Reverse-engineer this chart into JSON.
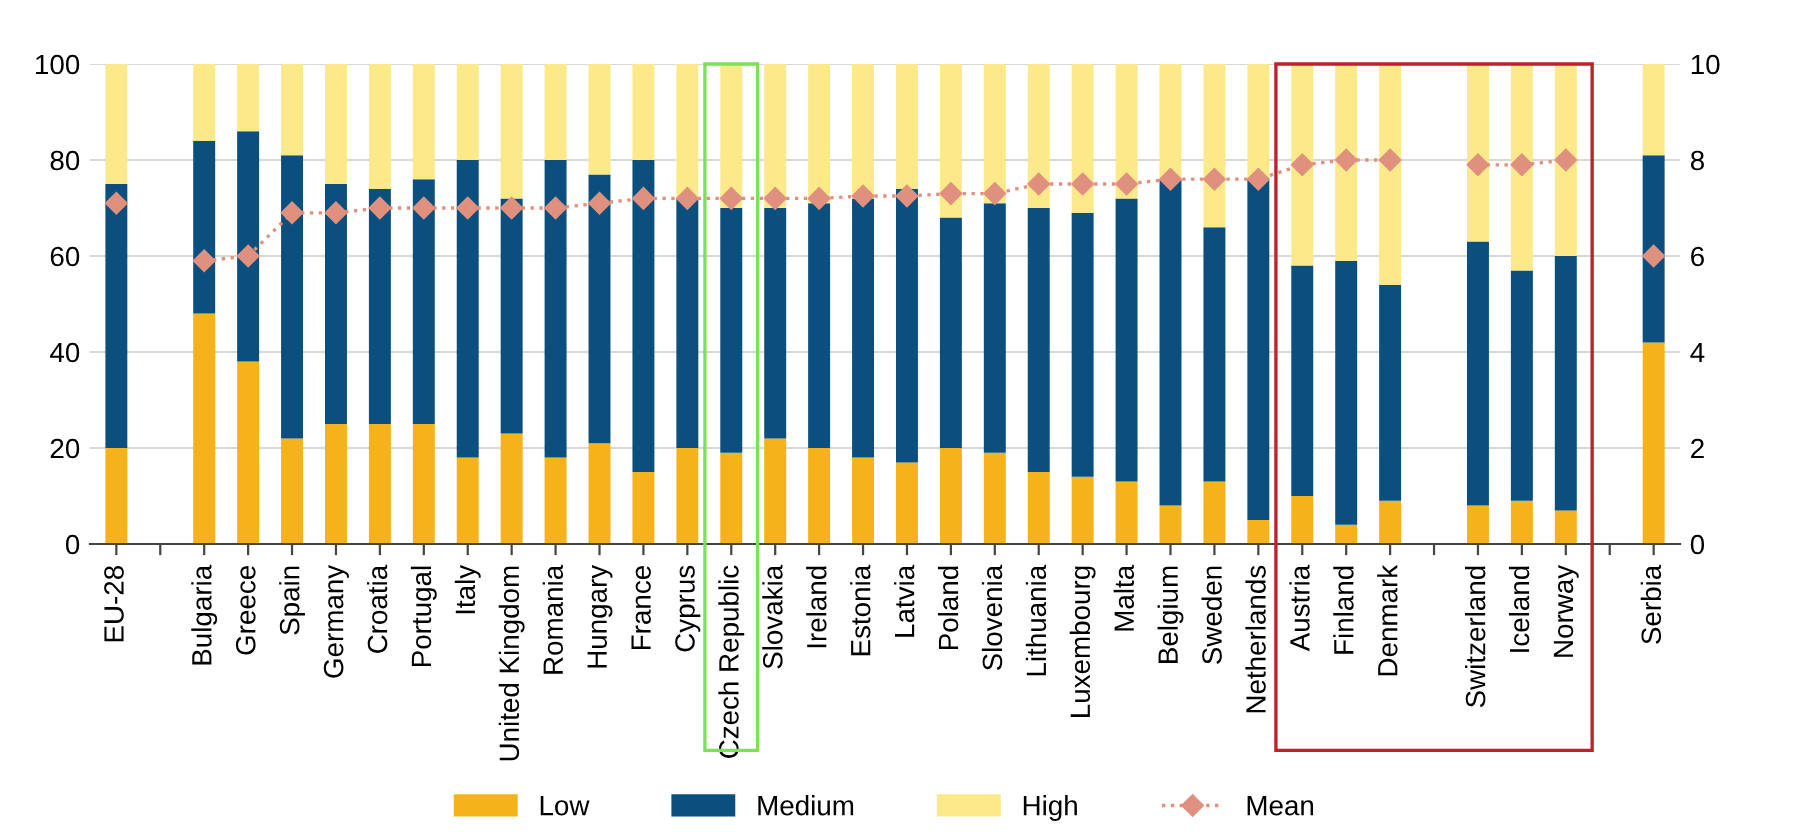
{
  "chart_data": {
    "type": "bar",
    "stacked": true,
    "categories": [
      "EU-28",
      null,
      "Bulgaria",
      "Greece",
      "Spain",
      "Germany",
      "Croatia",
      "Portugal",
      "Italy",
      "United Kingdom",
      "Romania",
      "Hungary",
      "France",
      "Cyprus",
      "Czech Republic",
      "Slovakia",
      "Ireland",
      "Estonia",
      "Latvia",
      "Poland",
      "Slovenia",
      "Lithuania",
      "Luxembourg",
      "Malta",
      "Belgium",
      "Sweden",
      "Netherlands",
      "Austria",
      "Finland",
      "Denmark",
      null,
      "Switzerland",
      "Iceland",
      "Norway",
      null,
      "Serbia"
    ],
    "series": [
      {
        "name": "Low",
        "color": "#f5b21a",
        "values": [
          20,
          null,
          48,
          38,
          22,
          25,
          25,
          25,
          18,
          23,
          18,
          21,
          15,
          20,
          19,
          22,
          20,
          18,
          17,
          20,
          19,
          15,
          14,
          13,
          8,
          13,
          5,
          10,
          4,
          9,
          null,
          8,
          9,
          7,
          null,
          42
        ]
      },
      {
        "name": "Medium",
        "color": "#0b4f7e",
        "values": [
          55,
          null,
          36,
          48,
          59,
          50,
          49,
          51,
          62,
          49,
          62,
          56,
          65,
          52,
          51,
          48,
          51,
          54,
          57,
          48,
          52,
          55,
          55,
          59,
          68,
          53,
          71,
          48,
          55,
          45,
          null,
          55,
          48,
          53,
          null,
          39
        ]
      },
      {
        "name": "High",
        "color": "#fbe98a",
        "values": [
          25,
          null,
          16,
          14,
          19,
          25,
          26,
          24,
          20,
          28,
          20,
          23,
          20,
          28,
          30,
          30,
          29,
          28,
          26,
          32,
          29,
          30,
          31,
          28,
          24,
          34,
          24,
          42,
          41,
          46,
          null,
          37,
          43,
          40,
          null,
          19
        ]
      },
      {
        "name": "Mean",
        "type": "line",
        "axis": "y2",
        "color": "#e0907e",
        "marker": "diamond",
        "line_style": "dotted",
        "values": [
          7.1,
          null,
          5.9,
          6.0,
          6.9,
          6.9,
          7.0,
          7.0,
          7.0,
          7.0,
          7.0,
          7.1,
          7.2,
          7.2,
          7.2,
          7.2,
          7.2,
          7.25,
          7.25,
          7.3,
          7.3,
          7.5,
          7.5,
          7.5,
          7.6,
          7.6,
          7.6,
          7.9,
          8.0,
          8.0,
          null,
          7.9,
          7.9,
          8.0,
          null,
          6.0
        ]
      }
    ],
    "ylim": [
      0,
      100
    ],
    "yticks": [
      0,
      20,
      40,
      60,
      80,
      100
    ],
    "y2lim": [
      0,
      10
    ],
    "y2ticks": [
      0,
      2,
      4,
      6,
      8,
      10
    ],
    "grid": "y",
    "legend": "bottom"
  }
}
